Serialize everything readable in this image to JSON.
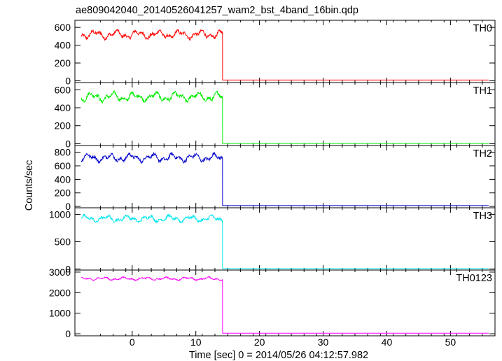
{
  "chart_data": {
    "type": "line",
    "title": "ae809042040_20140526041257_wam2_bst_4band_16bin.qdp",
    "xlabel": "Time [sec] 0 = 2014/05/26 04:12:57.982",
    "ylabel": "Counts/sec",
    "xlim": [
      -9,
      57
    ],
    "xticks": [
      0,
      10,
      20,
      30,
      40,
      50
    ],
    "xtick_labels": [
      "0",
      "10",
      "20",
      "30",
      "40",
      "50"
    ],
    "drop_time": 14.2,
    "grid": false,
    "panels": [
      {
        "name": "TH0",
        "color": "#ff0000",
        "ylim": [
          -20,
          680
        ],
        "yticks": [
          0,
          200,
          400,
          600
        ],
        "ytick_labels": [
          "0",
          "200",
          "400",
          "600"
        ],
        "level_before": 520,
        "amplitude": 55,
        "level_after": 8,
        "x_start": -8,
        "x_end": 56
      },
      {
        "name": "TH1",
        "color": "#00ee00",
        "ylim": [
          -20,
          680
        ],
        "yticks": [
          0,
          200,
          400,
          600
        ],
        "ytick_labels": [
          "0",
          "200",
          "400",
          "600"
        ],
        "level_before": 520,
        "amplitude": 60,
        "level_after": 3,
        "x_start": -8,
        "x_end": 56
      },
      {
        "name": "TH2",
        "color": "#0000cc",
        "ylim": [
          -20,
          900
        ],
        "yticks": [
          0,
          200,
          400,
          600,
          800
        ],
        "ytick_labels": [
          "0",
          "200",
          "400",
          "600",
          "800"
        ],
        "level_before": 720,
        "amplitude": 70,
        "level_after": 12,
        "x_start": -8,
        "x_end": 56
      },
      {
        "name": "TH3",
        "color": "#00e5ee",
        "ylim": [
          -20,
          1120
        ],
        "yticks": [
          0,
          500,
          1000
        ],
        "ytick_labels": [
          "0",
          "500",
          "1000"
        ],
        "level_before": 920,
        "amplitude": 70,
        "level_after": 6,
        "x_start": -8,
        "x_end": 56
      },
      {
        "name": "TH0123",
        "color": "#ff00ff",
        "ylim": [
          -100,
          3100
        ],
        "yticks": [
          0,
          1000,
          2000,
          3000
        ],
        "ytick_labels": [
          "0",
          "1000",
          "2000",
          "3000"
        ],
        "level_before": 2680,
        "amplitude": 90,
        "level_after": 30,
        "x_start": -8,
        "x_end": 56
      }
    ]
  }
}
